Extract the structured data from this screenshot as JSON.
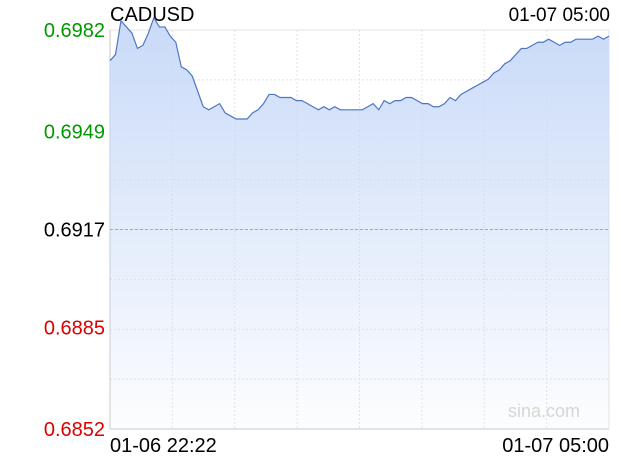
{
  "chart_data": {
    "type": "area",
    "title": "CADUSD",
    "timestamp": "01-07 05:00",
    "watermark": "sina.com",
    "xlabel": "",
    "ylabel": "",
    "ylim": [
      0.6852,
      0.6982
    ],
    "ref_value": 0.6917,
    "y_ticks": [
      {
        "label": "0.6982",
        "value": 0.6982,
        "color": "#009900"
      },
      {
        "label": "0.6949",
        "value": 0.6949,
        "color": "#009900"
      },
      {
        "label": "0.6917",
        "value": 0.6917,
        "color": "#000000"
      },
      {
        "label": "0.6885",
        "value": 0.6885,
        "color": "#dd0000"
      },
      {
        "label": "0.6852",
        "value": 0.6852,
        "color": "#dd0000"
      }
    ],
    "x_tick_labels": [
      "01-06 22:22",
      "01-07 05:00"
    ],
    "grid": true,
    "line_color": "#4f75c2",
    "fill_color": "#c9daf8",
    "series": [
      {
        "values": [
          0.6972,
          0.6974,
          0.6985,
          0.6983,
          0.6981,
          0.6976,
          0.6977,
          0.6981,
          0.6986,
          0.6983,
          0.6983,
          0.698,
          0.6978,
          0.697,
          0.6969,
          0.6967,
          0.6962,
          0.6957,
          0.6956,
          0.6957,
          0.6958,
          0.6955,
          0.6954,
          0.6953,
          0.6953,
          0.6953,
          0.6955,
          0.6956,
          0.6958,
          0.6961,
          0.6961,
          0.696,
          0.696,
          0.696,
          0.6959,
          0.6959,
          0.6958,
          0.6957,
          0.6956,
          0.6957,
          0.6956,
          0.6957,
          0.6956,
          0.6956,
          0.6956,
          0.6956,
          0.6956,
          0.6957,
          0.6958,
          0.6956,
          0.6959,
          0.6958,
          0.6959,
          0.6959,
          0.696,
          0.696,
          0.6959,
          0.6958,
          0.6958,
          0.6957,
          0.6957,
          0.6958,
          0.696,
          0.6959,
          0.6961,
          0.6962,
          0.6963,
          0.6964,
          0.6965,
          0.6966,
          0.6968,
          0.6969,
          0.6971,
          0.6972,
          0.6974,
          0.6976,
          0.6976,
          0.6977,
          0.6978,
          0.6978,
          0.6979,
          0.6978,
          0.6977,
          0.6978,
          0.6978,
          0.6979,
          0.6979,
          0.6979,
          0.6979,
          0.698,
          0.6979,
          0.698
        ]
      }
    ]
  }
}
